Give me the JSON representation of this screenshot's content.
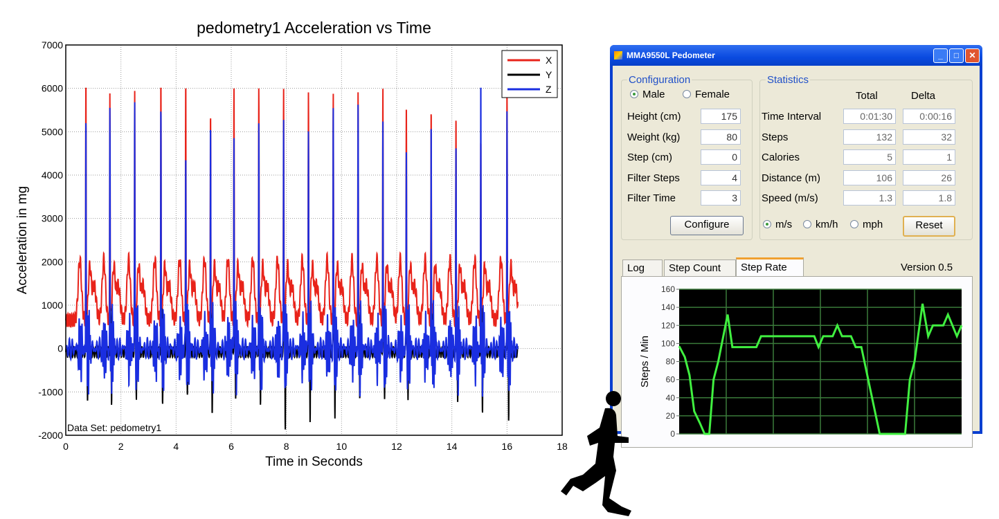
{
  "chart_data": [
    {
      "type": "line",
      "title": "pedometry1 Acceleration vs Time",
      "xlabel": "Time in Seconds",
      "ylabel": "Acceleration in mg",
      "xlim": [
        0,
        18
      ],
      "ylim": [
        -2000,
        7000
      ],
      "xticks": [
        0,
        2,
        4,
        6,
        8,
        10,
        12,
        14,
        16,
        18
      ],
      "yticks": [
        -2000,
        -1000,
        0,
        1000,
        2000,
        3000,
        4000,
        5000,
        6000,
        7000
      ],
      "grid": true,
      "legend": "top-right",
      "annotation": "Data Set: pedometry1",
      "x_end": 16.4,
      "series": [
        {
          "name": "X",
          "color": "#e8231a"
        },
        {
          "name": "Y",
          "color": "#000000"
        },
        {
          "name": "Z",
          "color": "#1a2ee0"
        }
      ],
      "step_peak_times": [
        0.73,
        1.6,
        2.5,
        3.45,
        4.35,
        5.25,
        6.1,
        7.0,
        7.9,
        8.8,
        9.7,
        10.6,
        11.5,
        12.35,
        13.25,
        14.15,
        15.05,
        16.0
      ],
      "x_peaks": [
        6000,
        6000,
        6000,
        6000,
        6000,
        5350,
        6000,
        6000,
        6000,
        6000,
        6000,
        6000,
        6000,
        5750,
        5550,
        5300,
        4700,
        6000
      ],
      "z_peaks": [
        5250,
        5050,
        5850,
        5400,
        4800,
        5000,
        5300,
        5050,
        5350,
        4900,
        5550,
        5300,
        5350,
        4850,
        5000,
        4850,
        6000,
        5400
      ],
      "y_troughs": [
        -1300,
        -1300,
        -1250,
        -1300,
        -1100,
        -1650,
        -1200,
        -1300,
        -1950,
        -1900,
        -1850,
        -1300,
        -1200,
        -1450,
        -1000,
        -1300,
        -1500,
        -1800
      ]
    },
    {
      "type": "line",
      "ylabel": "Steps / Min",
      "ylim": [
        0,
        160
      ],
      "yticks": [
        0,
        20,
        40,
        60,
        80,
        100,
        120,
        140,
        160
      ],
      "xlim": [
        0,
        60
      ],
      "grid": true,
      "color": "#40f040",
      "points": [
        [
          0,
          97
        ],
        [
          1.2,
          85
        ],
        [
          2.2,
          65
        ],
        [
          3.2,
          25
        ],
        [
          4.4,
          12
        ],
        [
          5.4,
          0
        ],
        [
          6.4,
          0
        ],
        [
          7.3,
          60
        ],
        [
          8.3,
          80
        ],
        [
          10.3,
          132
        ],
        [
          11.3,
          96
        ],
        [
          16.4,
          96
        ],
        [
          17.4,
          108
        ],
        [
          28.7,
          108
        ],
        [
          29.6,
          96
        ],
        [
          30.6,
          108
        ],
        [
          32.6,
          108
        ],
        [
          33.6,
          120
        ],
        [
          34.6,
          108
        ],
        [
          36.5,
          108
        ],
        [
          37.5,
          96
        ],
        [
          38.7,
          96
        ],
        [
          42.6,
          0
        ],
        [
          48,
          0
        ],
        [
          49,
          60
        ],
        [
          50,
          80
        ],
        [
          51.7,
          144
        ],
        [
          52.9,
          108
        ],
        [
          53.9,
          120
        ],
        [
          56.1,
          120
        ],
        [
          57.1,
          132
        ],
        [
          59,
          108
        ],
        [
          60,
          120
        ]
      ]
    }
  ],
  "window": {
    "title": "MMA9550L Pedometer",
    "minimize": "_",
    "maximize": "□",
    "close": "✕"
  },
  "config": {
    "title": "Configuration",
    "male": "Male",
    "female": "Female",
    "gender": "Male",
    "fields": [
      {
        "label": "Height (cm)",
        "value": "175"
      },
      {
        "label": "Weight (kg)",
        "value": "80"
      },
      {
        "label": "Step (cm)",
        "value": "0"
      },
      {
        "label": "Filter Steps",
        "value": "4"
      },
      {
        "label": "Filter Time",
        "value": "3"
      }
    ],
    "button": "Configure"
  },
  "stats": {
    "title": "Statistics",
    "col_total": "Total",
    "col_delta": "Delta",
    "rows": [
      {
        "label": "Time Interval",
        "total": "0:01:30",
        "delta": "0:00:16"
      },
      {
        "label": "Steps",
        "total": "132",
        "delta": "32"
      },
      {
        "label": "Calories",
        "total": "5",
        "delta": "1"
      },
      {
        "label": "Distance (m)",
        "total": "106",
        "delta": "26"
      },
      {
        "label": "Speed (m/s)",
        "total": "1.3",
        "delta": "1.8"
      }
    ],
    "units": [
      "m/s",
      "km/h",
      "mph"
    ],
    "unit_selected": "m/s",
    "reset": "Reset"
  },
  "tabs": [
    {
      "label": "Log"
    },
    {
      "label": "Step Count"
    },
    {
      "label": "Step Rate"
    }
  ],
  "active_tab": "Step Rate",
  "version": "Version 0.5"
}
